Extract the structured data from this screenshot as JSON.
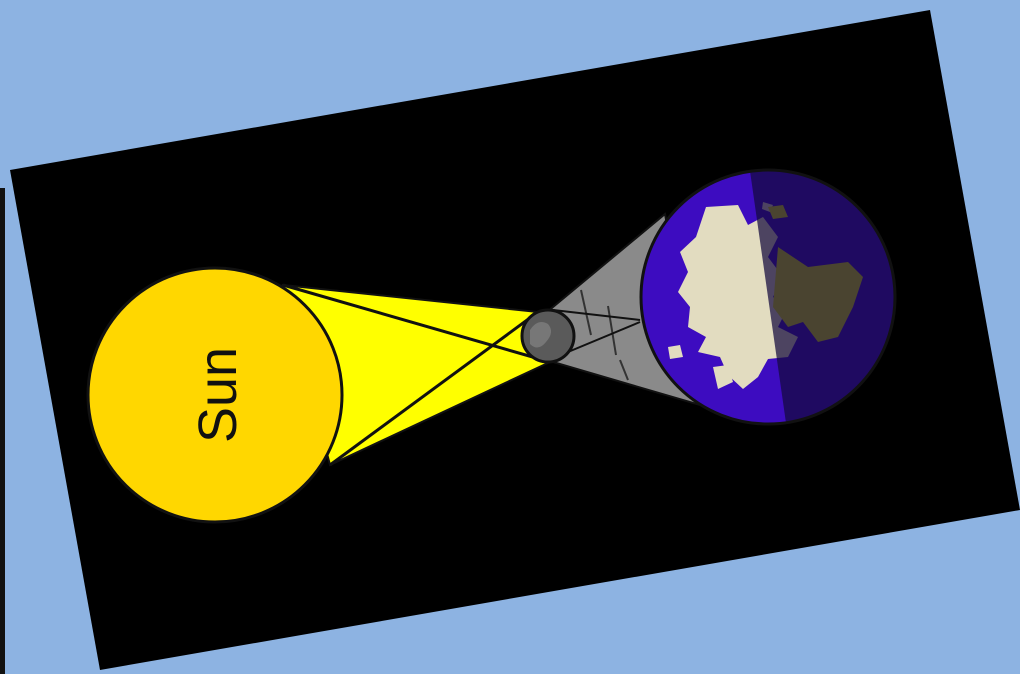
{
  "diagram": {
    "sun_label": "Sun",
    "colors": {
      "background": "#8db3e2",
      "space": "#000000",
      "sun": "#ffd700",
      "sunlight": "#ffff00",
      "umbra": "#8a8a8a",
      "moon": "#5a5a5a",
      "earth_ocean": "#3d0cc0",
      "earth_land": "#e2dcc0",
      "earth_night": "#1a0a4a",
      "outline": "#111111"
    }
  }
}
